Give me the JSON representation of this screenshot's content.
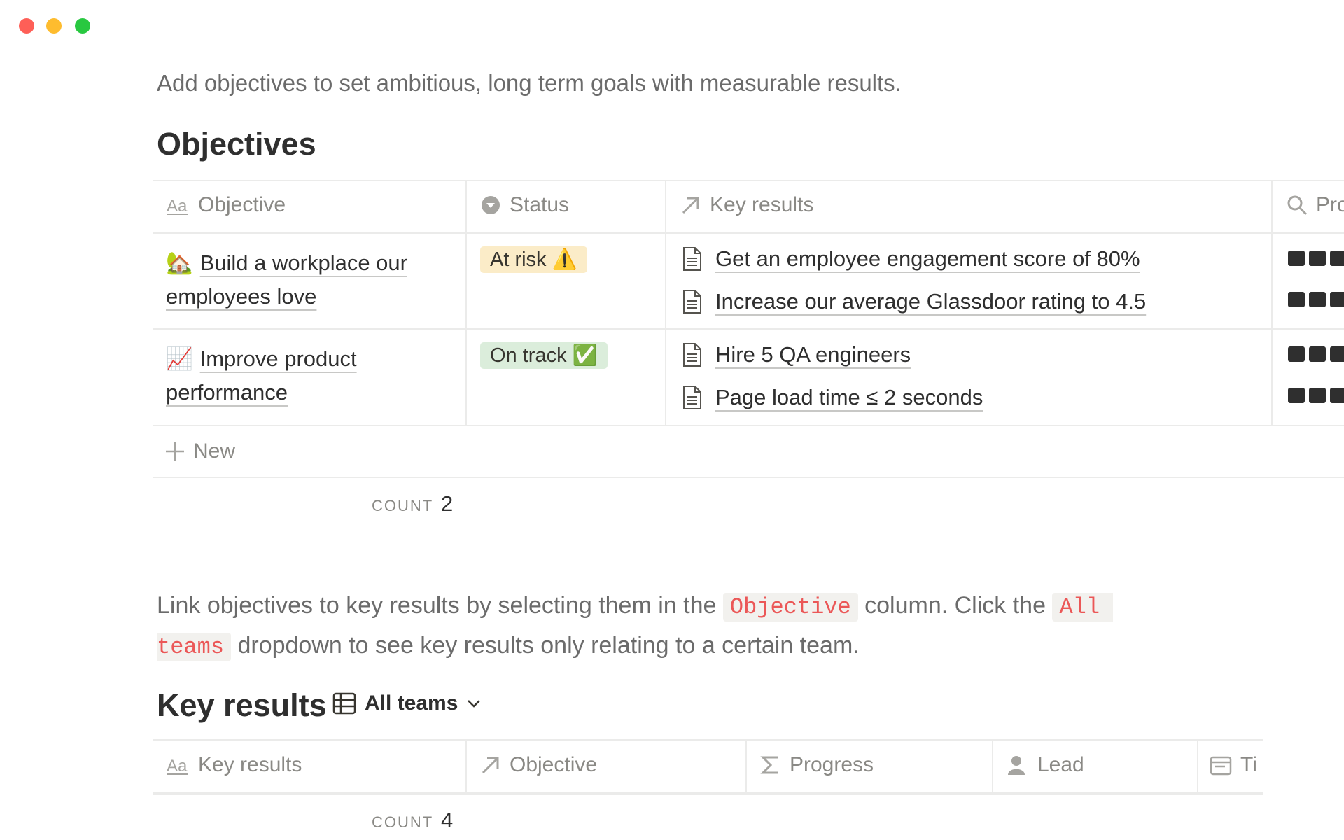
{
  "intro": "Add objectives to set ambitious, long term goals with measurable results.",
  "objectives": {
    "title": "Objectives",
    "columns": [
      "Objective",
      "Status",
      "Key results",
      "Pro"
    ],
    "rows": [
      {
        "icon": "🏡",
        "name": "Build a workplace our employees love",
        "status": "At risk ⚠️",
        "status_color": "#fbecc8",
        "key_results": [
          "Get an employee engagement score of 80%",
          "Increase our average Glassdoor rating to 4.5"
        ]
      },
      {
        "icon": "📈",
        "name": "Improve product performance",
        "status": "On track ✅",
        "status_color": "#dbeddb",
        "key_results": [
          "Hire 5 QA engineers",
          "Page load time ≤ 2 seconds"
        ]
      }
    ],
    "new": "New",
    "count_label": "COUNT",
    "count": 2
  },
  "link_note": {
    "segments": [
      {
        "text": "Link objectives to key results by selecting them in the ",
        "code": false
      },
      {
        "text": "Objective",
        "code": true
      },
      {
        "text": " column. Click the ",
        "code": false
      },
      {
        "text": "All teams",
        "code": true
      },
      {
        "text": " dropdown to see key results only relating to a certain team.",
        "code": false
      }
    ]
  },
  "key_results": {
    "title": "Key results",
    "view": "All teams",
    "columns": [
      "Key results",
      "Objective",
      "Progress",
      "Lead",
      "Ti"
    ],
    "count_label": "COUNT",
    "count": 4
  }
}
